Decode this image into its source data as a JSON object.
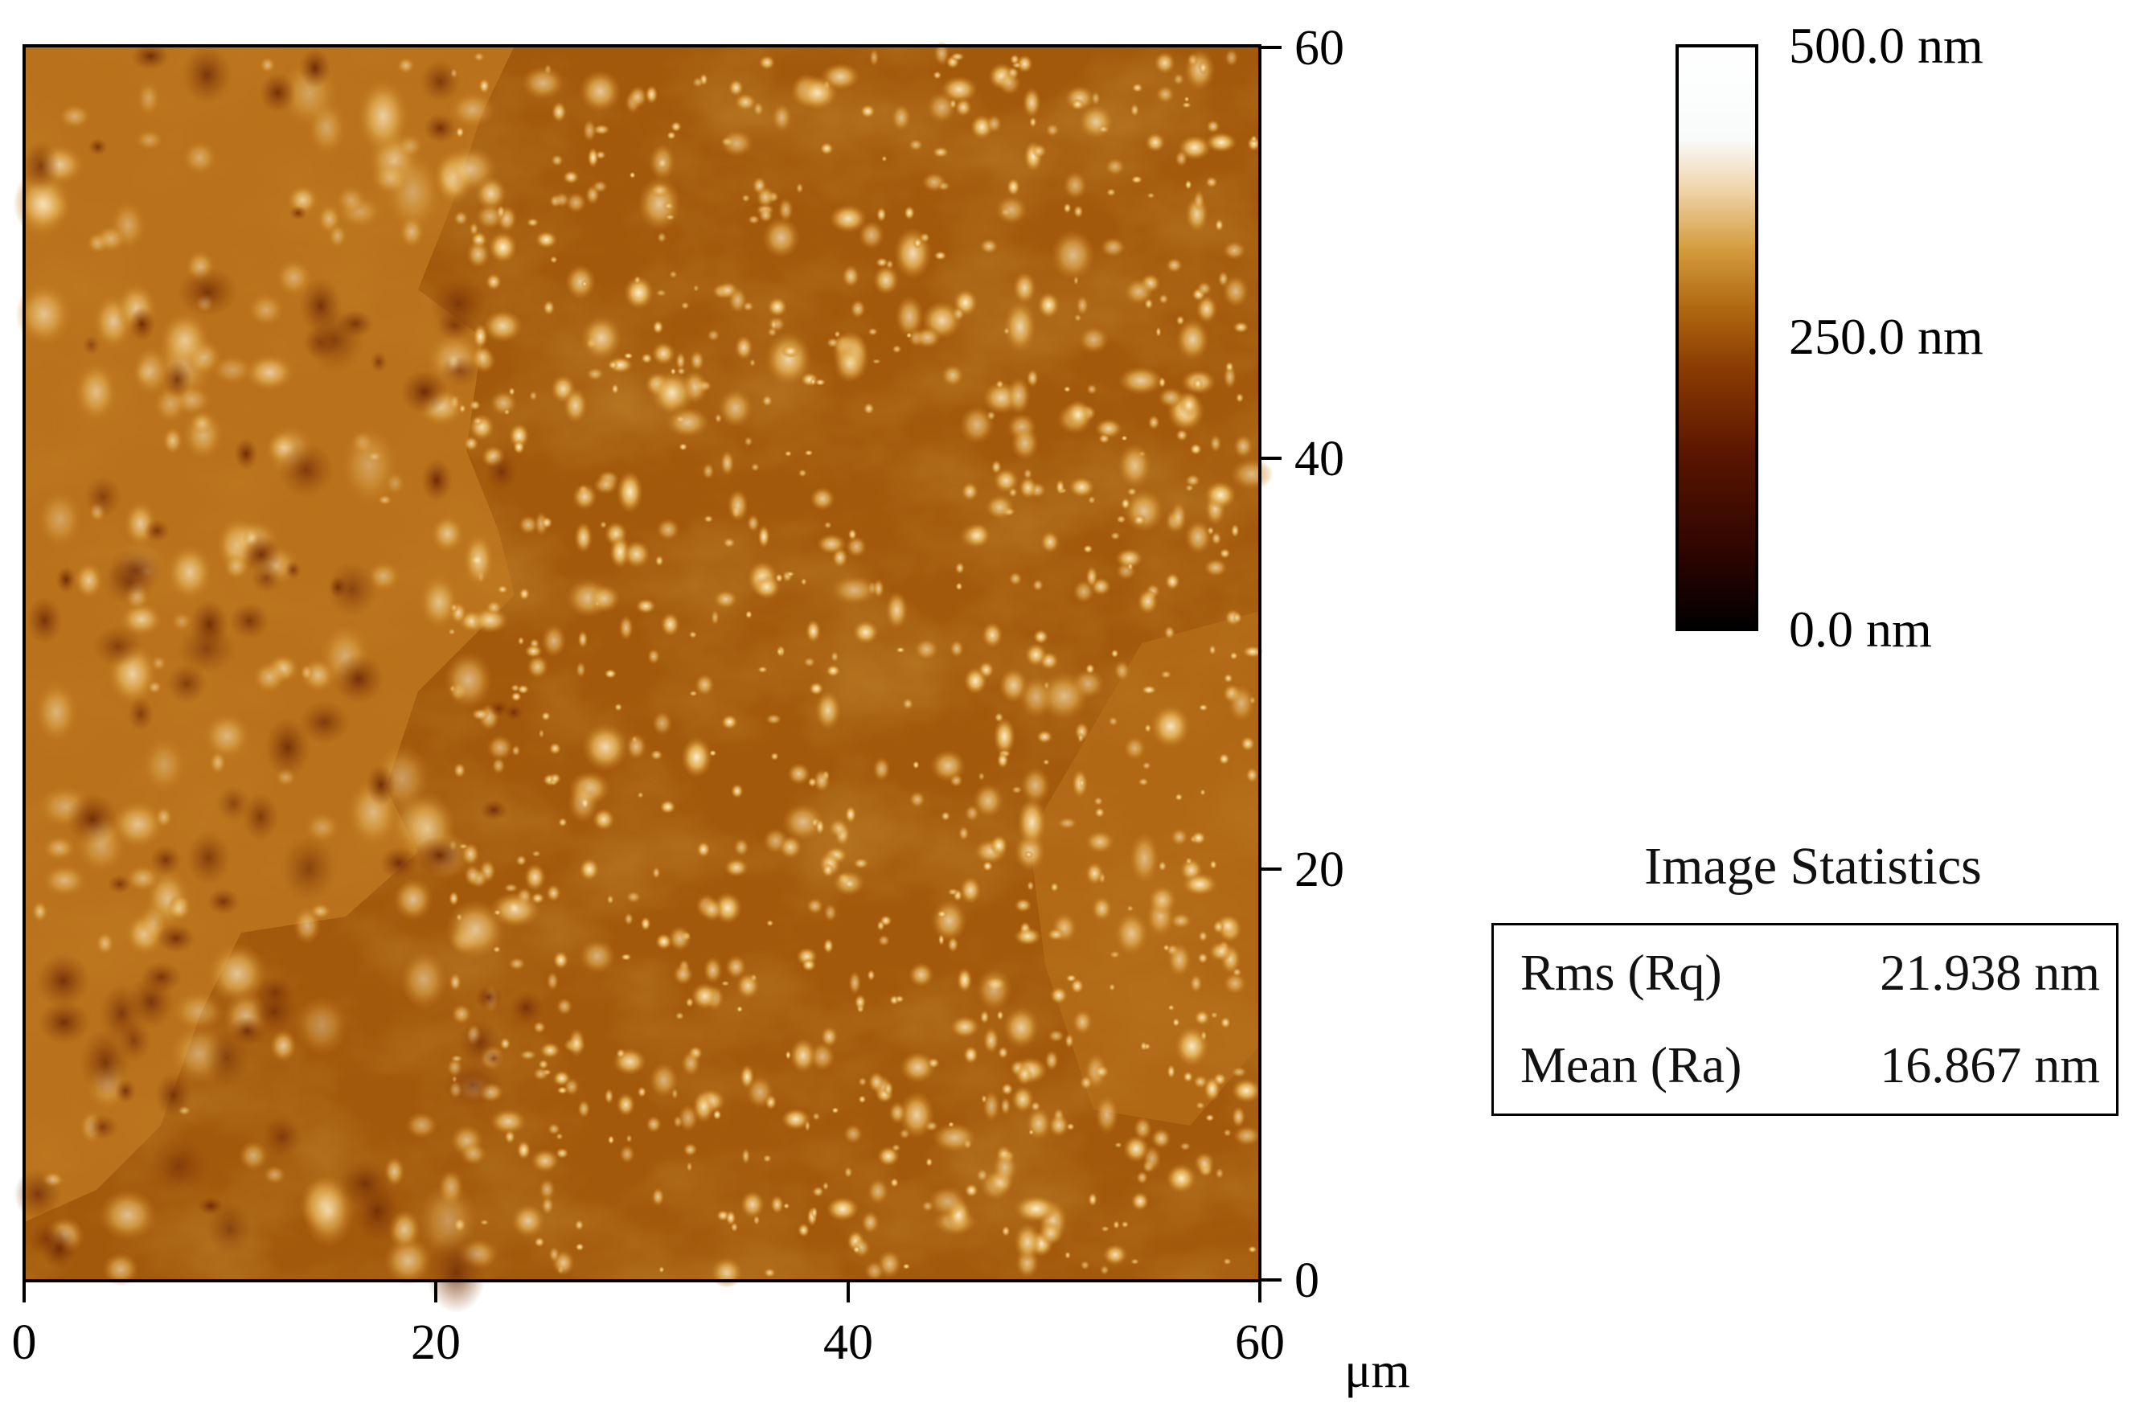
{
  "afm_image": {
    "description_colors": {
      "low": "#000000",
      "mid": "#a2580b",
      "high": "#ffffff"
    }
  },
  "axes": {
    "x_ticks": [
      "0",
      "20",
      "40",
      "60"
    ],
    "y_ticks": [
      "0",
      "20",
      "40",
      "60"
    ],
    "x_unit": "μm"
  },
  "colorbar": {
    "max_label": "500.0 nm",
    "mid_label": "250.0 nm",
    "min_label": "0.0 nm",
    "stops": [
      "#000000",
      "#2a0400",
      "#5a1500",
      "#8a3c03",
      "#b06810",
      "#d39b3d",
      "#efd2a6",
      "#f9fbfb",
      "#ffffff"
    ]
  },
  "statistics": {
    "title": "Image Statistics",
    "rows": [
      {
        "label": "Rms (Rq)",
        "value": "21.938 nm"
      },
      {
        "label": "Mean (Ra)",
        "value": "16.867 nm"
      }
    ]
  }
}
